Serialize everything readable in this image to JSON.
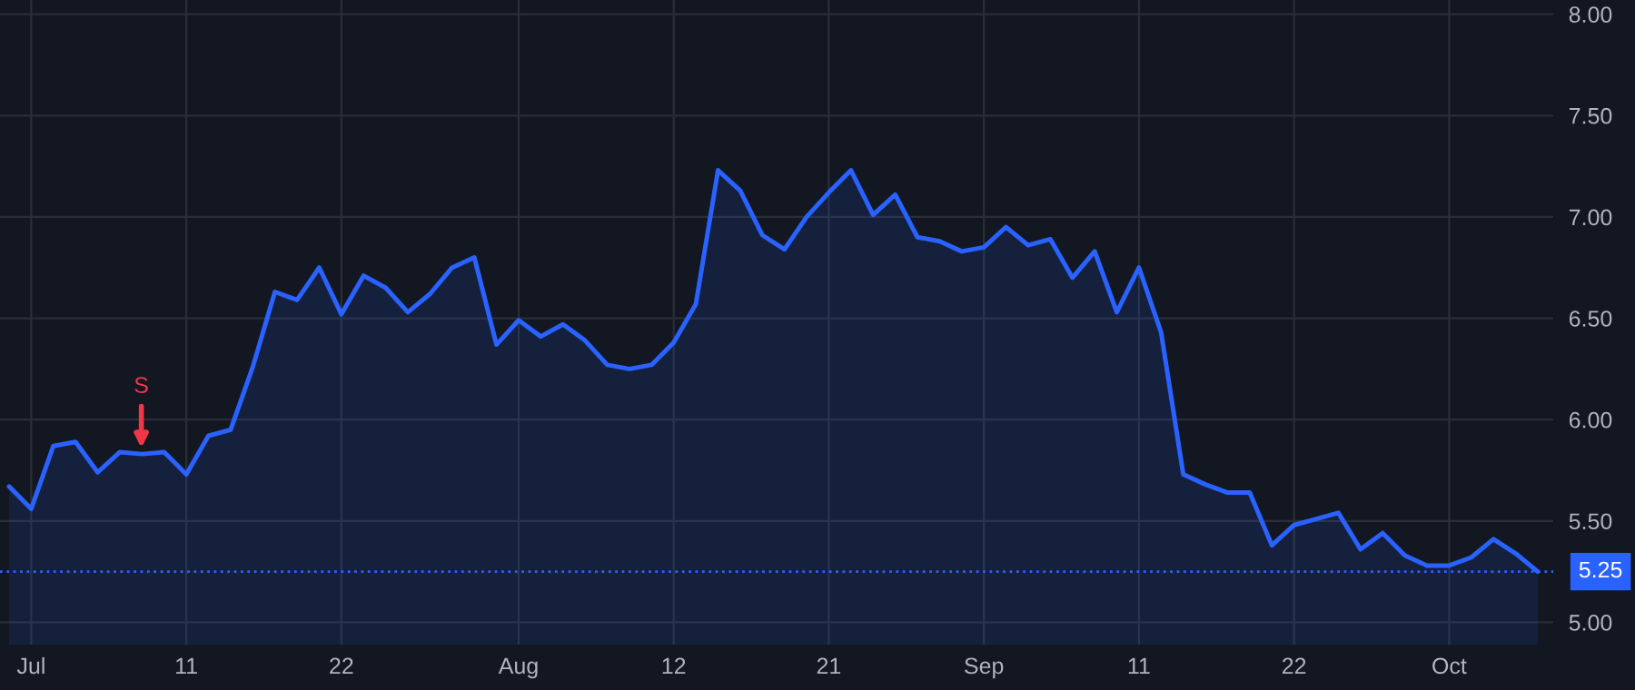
{
  "chart_data": {
    "type": "area",
    "categories": [
      null,
      "Jul",
      null,
      null,
      null,
      null,
      null,
      null,
      "11",
      null,
      null,
      null,
      null,
      null,
      null,
      "22",
      null,
      null,
      null,
      null,
      null,
      null,
      null,
      "Aug",
      null,
      null,
      null,
      null,
      null,
      null,
      "12",
      null,
      null,
      null,
      null,
      null,
      null,
      "21",
      null,
      null,
      null,
      null,
      null,
      null,
      "Sep",
      null,
      null,
      null,
      null,
      null,
      null,
      "11",
      null,
      null,
      null,
      null,
      null,
      null,
      "22",
      null,
      null,
      null,
      null,
      null,
      null,
      "Oct",
      null,
      null,
      null,
      null
    ],
    "series": [
      {
        "color": "#2962ff",
        "values": [
          5.67,
          5.56,
          5.87,
          5.89,
          5.74,
          5.84,
          5.83,
          5.84,
          5.73,
          5.92,
          5.95,
          6.26,
          6.63,
          6.59,
          6.75,
          6.52,
          6.71,
          6.65,
          6.53,
          6.62,
          6.75,
          6.8,
          6.37,
          6.49,
          6.41,
          6.47,
          6.39,
          6.27,
          6.25,
          6.27,
          6.38,
          6.57,
          7.23,
          7.13,
          6.91,
          6.84,
          7.0,
          7.12,
          7.23,
          7.01,
          7.11,
          6.9,
          6.88,
          6.83,
          6.85,
          6.95,
          6.86,
          6.89,
          6.7,
          6.83,
          6.53,
          6.75,
          6.43,
          5.73,
          5.68,
          5.64,
          5.64,
          5.38,
          5.48,
          5.51,
          5.54,
          5.36,
          5.44,
          5.33,
          5.28,
          5.28,
          5.32,
          5.41,
          5.34,
          5.25
        ]
      }
    ],
    "ylim": [
      4.89,
      8.07
    ],
    "yticks": [
      {
        "value": 5,
        "label": "5.00"
      },
      {
        "value": 5.5,
        "label": "5.50"
      },
      {
        "value": 6,
        "label": "6.00"
      },
      {
        "value": 6.5,
        "label": "6.50"
      },
      {
        "value": 7,
        "label": "7.00"
      },
      {
        "value": 7.5,
        "label": "7.50"
      },
      {
        "value": 8,
        "label": "8.00"
      }
    ],
    "ref_lines": [
      {
        "axis": "y",
        "value": 5.25,
        "label": "5.25",
        "color": "#2962ff",
        "line_style": "dotted"
      }
    ],
    "annotations": [
      "S"
    ],
    "grid": true,
    "line_style": "solid"
  }
}
